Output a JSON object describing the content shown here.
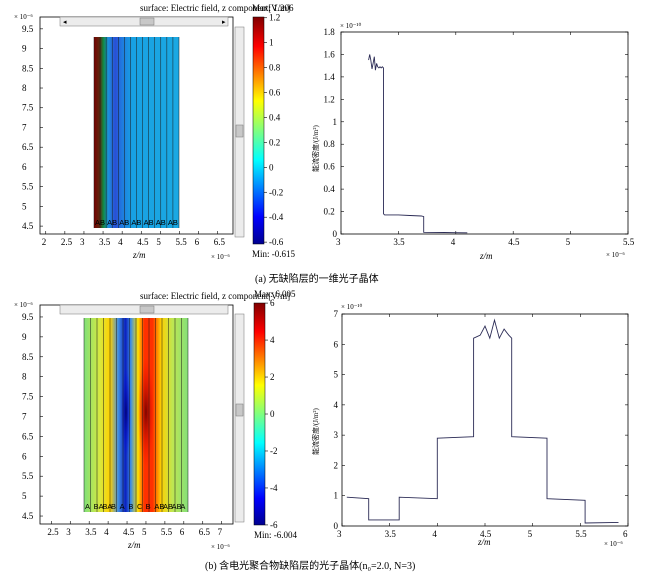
{
  "captions": {
    "a": "(a)  无缺陷层的一维光子晶体",
    "b": "(b)  含电光聚合物缺陷层的光子晶体(n₀=2.0, N=3)"
  },
  "colors": {
    "bg_panel": "#ffffff",
    "scroll_bg": "#e8e8e8",
    "line": "#2b2b55"
  },
  "chart_data": [
    {
      "type": "heatmap",
      "title": "surface: Electric field, z component[V/m]",
      "xlabel": "z/m",
      "x_exp": "× 10⁻⁶",
      "y_exp": "× 10⁻⁶",
      "x_ticks": [
        "2",
        "2.5",
        "3",
        "3.5",
        "4",
        "4.5",
        "5",
        "5.5",
        "6",
        "6.5"
      ],
      "y_ticks": [
        "4.5",
        "5",
        "5.5",
        "6",
        "6.5",
        "7",
        "7.5",
        "8",
        "8.5",
        "9",
        "9.5"
      ],
      "xlim": [
        1.85,
        6.9
      ],
      "ylim": [
        4.3,
        9.8
      ],
      "colorbar_max": "Max: 1.206",
      "colorbar_min": "Min: -0.615",
      "colorbar_ticks": [
        "1.2",
        "1",
        "0.8",
        "0.6",
        "0.4",
        "0.2",
        "0",
        "-0.2",
        "-0.4",
        "-0.6"
      ],
      "colorbar_range": [
        -0.615,
        1.206
      ],
      "layer_labels": [
        "AB",
        "AB",
        "AB",
        "AB",
        "AB",
        "AB",
        "AB"
      ]
    },
    {
      "type": "line",
      "xlabel": "z/m",
      "ylabel": "能流密度/(J/m²)",
      "x_exp": "× 10⁻⁶",
      "y_exp": "× 10⁻¹⁰",
      "x_ticks": [
        "3",
        "3.5",
        "4",
        "4.5",
        "5",
        "5.5"
      ],
      "y_ticks": [
        "0",
        "0.2",
        "0.4",
        "0.6",
        "0.8",
        "1",
        "1.2",
        "1.4",
        "1.6",
        "1.8"
      ],
      "xlim": [
        3.0,
        5.5
      ],
      "ylim": [
        0,
        1.8
      ],
      "x": [
        3.24,
        3.25,
        3.26,
        3.27,
        3.28,
        3.29,
        3.3,
        3.31,
        3.32,
        3.33,
        3.34,
        3.35,
        3.36,
        3.37,
        3.37,
        3.38,
        3.5,
        3.6,
        3.7,
        3.72,
        3.72,
        3.9,
        4.0,
        4.1
      ],
      "y": [
        1.55,
        1.6,
        1.55,
        1.47,
        1.52,
        1.58,
        1.46,
        1.52,
        1.49,
        1.48,
        1.49,
        1.48,
        1.49,
        1.48,
        0.18,
        0.17,
        0.17,
        0.165,
        0.16,
        0.155,
        0.015,
        0.013,
        0.012,
        0.011
      ]
    },
    {
      "type": "heatmap",
      "title": "surface: Electric field, z component[V/m]",
      "xlabel": "z/m",
      "x_exp": "× 10⁻⁶",
      "y_exp": "× 10⁻⁶",
      "x_ticks": [
        "2.5",
        "3",
        "3.5",
        "4",
        "4.5",
        "5",
        "5.5",
        "6",
        "6.5",
        "7"
      ],
      "y_ticks": [
        "4.5",
        "5",
        "5.5",
        "6",
        "6.5",
        "7",
        "7.5",
        "8",
        "8.5",
        "9",
        "9.5"
      ],
      "xlim": [
        2.2,
        7.3
      ],
      "ylim": [
        4.3,
        9.8
      ],
      "colorbar_max": "Max: 6.005",
      "colorbar_min": "Min: -6.004",
      "colorbar_ticks": [
        "6",
        "4",
        "2",
        "0",
        "-2",
        "-4",
        "-6"
      ],
      "colorbar_range": [
        -6.004,
        6.005
      ],
      "layer_labels": [
        "A",
        "BA",
        "BA",
        "B",
        "A",
        "B",
        "C",
        "B",
        "AB",
        "AB",
        "AB",
        "A"
      ]
    },
    {
      "type": "line",
      "xlabel": "z/m",
      "ylabel": "能流密度/(J/m²)",
      "x_exp": "× 10⁻⁶",
      "y_exp": "× 10⁻¹⁰",
      "x_ticks": [
        "3",
        "3.5",
        "4",
        "4.5",
        "5",
        "5.5",
        "6"
      ],
      "y_ticks": [
        "0",
        "1",
        "2",
        "3",
        "4",
        "5",
        "6",
        "7"
      ],
      "xlim": [
        3.0,
        6.0
      ],
      "ylim": [
        0,
        7
      ],
      "x": [
        3.05,
        3.28,
        3.28,
        3.6,
        3.6,
        4.0,
        4.0,
        4.38,
        4.38,
        4.45,
        4.5,
        4.55,
        4.6,
        4.65,
        4.7,
        4.75,
        4.78,
        4.78,
        5.15,
        5.15,
        5.55,
        5.55,
        5.9
      ],
      "y": [
        0.95,
        0.9,
        0.2,
        0.2,
        0.95,
        0.9,
        2.9,
        2.95,
        6.2,
        6.3,
        6.6,
        6.2,
        6.8,
        6.2,
        6.5,
        6.3,
        6.2,
        2.95,
        2.9,
        0.9,
        0.85,
        0.1,
        0.12
      ]
    }
  ]
}
